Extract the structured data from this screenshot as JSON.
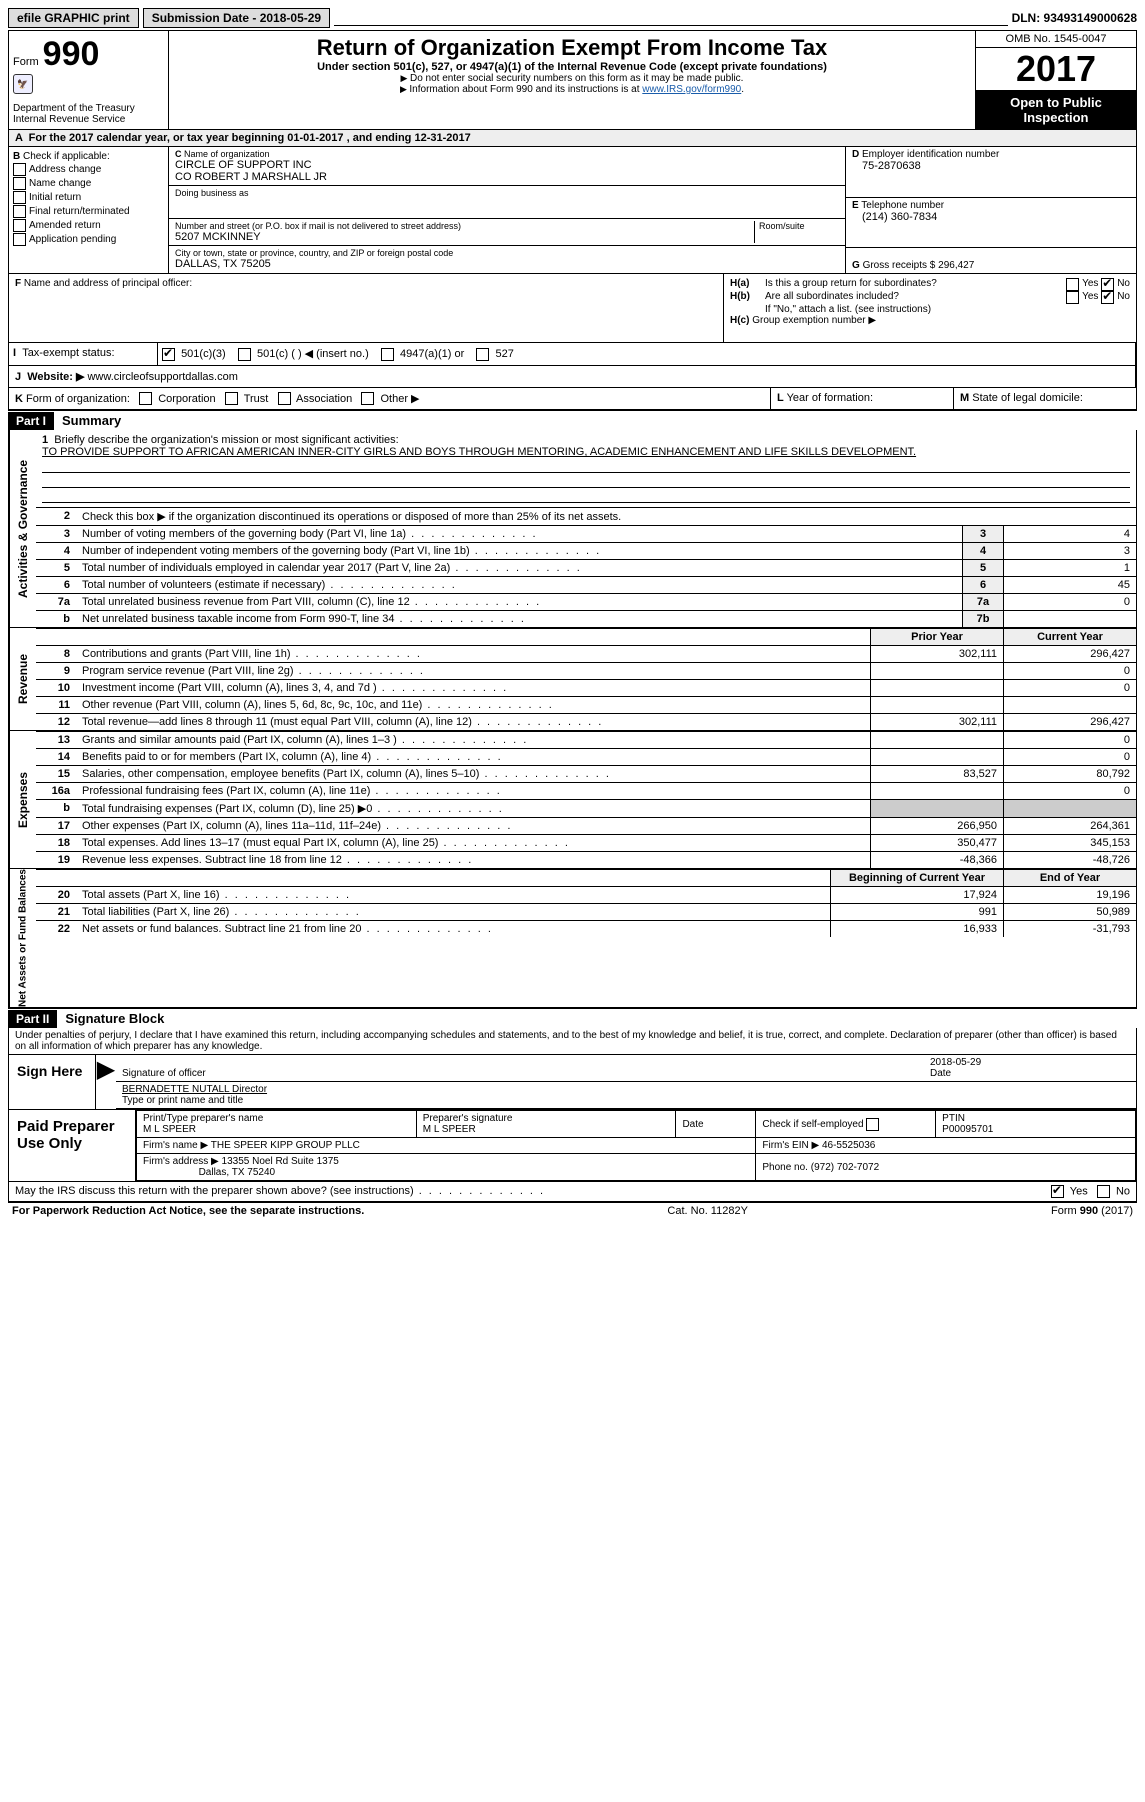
{
  "topbar": {
    "efile": "efile GRAPHIC print",
    "submission_label": "Submission Date - 2018-05-29",
    "dln_label": "DLN: 93493149000628"
  },
  "header": {
    "form_label": "Form",
    "form_number": "990",
    "dept1": "Department of the Treasury",
    "dept2": "Internal Revenue Service",
    "title": "Return of Organization Exempt From Income Tax",
    "subtitle": "Under section 501(c), 527, or 4947(a)(1) of the Internal Revenue Code (except private foundations)",
    "note1": "Do not enter social security numbers on this form as it may be made public.",
    "note2_pre": "Information about Form 990 and its instructions is at ",
    "note2_link": "www.IRS.gov/form990",
    "omb": "OMB No. 1545-0047",
    "year": "2017",
    "open1": "Open to Public",
    "open2": "Inspection"
  },
  "A": {
    "text_pre": "For the 2017 calendar year, or tax year beginning ",
    "begin": "01-01-2017",
    "mid": " , and ending ",
    "end": "12-31-2017"
  },
  "B": {
    "label": "Check if applicable:",
    "items": [
      "Address change",
      "Name change",
      "Initial return",
      "Final return/terminated",
      "Amended return",
      "Application pending"
    ]
  },
  "C": {
    "name_label": "Name of organization",
    "name1": "CIRCLE OF SUPPORT INC",
    "name2": "CO ROBERT J MARSHALL JR",
    "dba_label": "Doing business as",
    "addr_label": "Number and street (or P.O. box if mail is not delivered to street address)",
    "room_label": "Room/suite",
    "addr": "5207 MCKINNEY",
    "city_label": "City or town, state or province, country, and ZIP or foreign postal code",
    "city": "DALLAS, TX  75205"
  },
  "D": {
    "label": "Employer identification number",
    "val": "75-2870638"
  },
  "E": {
    "label": "Telephone number",
    "val": "(214) 360-7834"
  },
  "G": {
    "label": "Gross receipts $",
    "val": "296,427"
  },
  "F": {
    "label": "Name and address of principal officer:"
  },
  "H": {
    "a": "Is this a group return for subordinates?",
    "b": "Are all subordinates included?",
    "b_note": "If \"No,\" attach a list. (see instructions)",
    "c": "Group exemption number ▶",
    "yes": "Yes",
    "no": "No"
  },
  "I": {
    "label": "Tax-exempt status:",
    "opts": [
      "501(c)(3)",
      "501(c) (  ) ◀ (insert no.)",
      "4947(a)(1) or",
      "527"
    ]
  },
  "J": {
    "label": "Website: ▶",
    "val": "www.circleofsupportdallas.com"
  },
  "K": {
    "label": "Form of organization:",
    "opts": [
      "Corporation",
      "Trust",
      "Association",
      "Other ▶"
    ]
  },
  "L": {
    "label": "Year of formation:"
  },
  "M": {
    "label": "State of legal domicile:"
  },
  "partI": {
    "hdr": "Part I",
    "title": "Summary",
    "side1": "Activities & Governance",
    "side2": "Revenue",
    "side3": "Expenses",
    "side4": "Net Assets or Fund Balances",
    "l1_label": "Briefly describe the organization's mission or most significant activities:",
    "l1_text": "TO PROVIDE SUPPORT TO AFRICAN AMERICAN INNER-CITY GIRLS AND BOYS THROUGH MENTORING, ACADEMIC ENHANCEMENT AND LIFE SKILLS DEVELOPMENT.",
    "l2": "Check this box ▶     if the organization discontinued its operations or disposed of more than 25% of its net assets.",
    "prior_hdr": "Prior Year",
    "current_hdr": "Current Year",
    "beg_hdr": "Beginning of Current Year",
    "end_hdr": "End of Year",
    "lines_ag": [
      {
        "n": "3",
        "t": "Number of voting members of the governing body (Part VI, line 1a)",
        "c": "3",
        "v": "4"
      },
      {
        "n": "4",
        "t": "Number of independent voting members of the governing body (Part VI, line 1b)",
        "c": "4",
        "v": "3"
      },
      {
        "n": "5",
        "t": "Total number of individuals employed in calendar year 2017 (Part V, line 2a)",
        "c": "5",
        "v": "1"
      },
      {
        "n": "6",
        "t": "Total number of volunteers (estimate if necessary)",
        "c": "6",
        "v": "45"
      },
      {
        "n": "7a",
        "t": "Total unrelated business revenue from Part VIII, column (C), line 12",
        "c": "7a",
        "v": "0"
      },
      {
        "n": "b",
        "t": "Net unrelated business taxable income from Form 990-T, line 34",
        "c": "7b",
        "v": ""
      }
    ],
    "lines_rev": [
      {
        "n": "8",
        "t": "Contributions and grants (Part VIII, line 1h)",
        "p": "302,111",
        "c": "296,427"
      },
      {
        "n": "9",
        "t": "Program service revenue (Part VIII, line 2g)",
        "p": "",
        "c": "0"
      },
      {
        "n": "10",
        "t": "Investment income (Part VIII, column (A), lines 3, 4, and 7d )",
        "p": "",
        "c": "0"
      },
      {
        "n": "11",
        "t": "Other revenue (Part VIII, column (A), lines 5, 6d, 8c, 9c, 10c, and 11e)",
        "p": "",
        "c": ""
      },
      {
        "n": "12",
        "t": "Total revenue—add lines 8 through 11 (must equal Part VIII, column (A), line 12)",
        "p": "302,111",
        "c": "296,427"
      }
    ],
    "lines_exp": [
      {
        "n": "13",
        "t": "Grants and similar amounts paid (Part IX, column (A), lines 1–3 )",
        "p": "",
        "c": "0"
      },
      {
        "n": "14",
        "t": "Benefits paid to or for members (Part IX, column (A), line 4)",
        "p": "",
        "c": "0"
      },
      {
        "n": "15",
        "t": "Salaries, other compensation, employee benefits (Part IX, column (A), lines 5–10)",
        "p": "83,527",
        "c": "80,792"
      },
      {
        "n": "16a",
        "t": "Professional fundraising fees (Part IX, column (A), line 11e)",
        "p": "",
        "c": "0"
      },
      {
        "n": "b",
        "t": "Total fundraising expenses (Part IX, column (D), line 25) ▶0",
        "p": "GRAY",
        "c": "GRAY"
      },
      {
        "n": "17",
        "t": "Other expenses (Part IX, column (A), lines 11a–11d, 11f–24e)",
        "p": "266,950",
        "c": "264,361"
      },
      {
        "n": "18",
        "t": "Total expenses. Add lines 13–17 (must equal Part IX, column (A), line 25)",
        "p": "350,477",
        "c": "345,153"
      },
      {
        "n": "19",
        "t": "Revenue less expenses. Subtract line 18 from line 12",
        "p": "-48,366",
        "c": "-48,726"
      }
    ],
    "lines_net": [
      {
        "n": "20",
        "t": "Total assets (Part X, line 16)",
        "p": "17,924",
        "c": "19,196"
      },
      {
        "n": "21",
        "t": "Total liabilities (Part X, line 26)",
        "p": "991",
        "c": "50,989"
      },
      {
        "n": "22",
        "t": "Net assets or fund balances. Subtract line 21 from line 20",
        "p": "16,933",
        "c": "-31,793"
      }
    ]
  },
  "partII": {
    "hdr": "Part II",
    "title": "Signature Block",
    "penalties": "Under penalties of perjury, I declare that I have examined this return, including accompanying schedules and statements, and to the best of my knowledge and belief, it is true, correct, and complete. Declaration of preparer (other than officer) is based on all information of which preparer has any knowledge.",
    "sign_here": "Sign Here",
    "sig_officer": "Signature of officer",
    "date_label": "Date",
    "sig_date": "2018-05-29",
    "officer_name": "BERNADETTE NUTALL  Director",
    "type_name": "Type or print name and title",
    "paid": "Paid Preparer Use Only",
    "prep_name_label": "Print/Type preparer's name",
    "prep_name": "M L SPEER",
    "prep_sig_label": "Preparer's signature",
    "prep_sig": "M L SPEER",
    "check_label": "Check       if self-employed",
    "ptin_label": "PTIN",
    "ptin": "P00095701",
    "firm_name_label": "Firm's name    ▶",
    "firm_name": "THE SPEER KIPP GROUP PLLC",
    "firm_ein_label": "Firm's EIN ▶",
    "firm_ein": "46-5525036",
    "firm_addr_label": "Firm's address ▶",
    "firm_addr1": "13355 Noel Rd Suite 1375",
    "firm_addr2": "Dallas, TX  75240",
    "phone_label": "Phone no.",
    "phone": "(972) 702-7072",
    "discuss": "May the IRS discuss this return with the preparer shown above? (see instructions)"
  },
  "footer": {
    "left": "For Paperwork Reduction Act Notice, see the separate instructions.",
    "mid": "Cat. No. 11282Y",
    "right": "Form 990 (2017)"
  }
}
